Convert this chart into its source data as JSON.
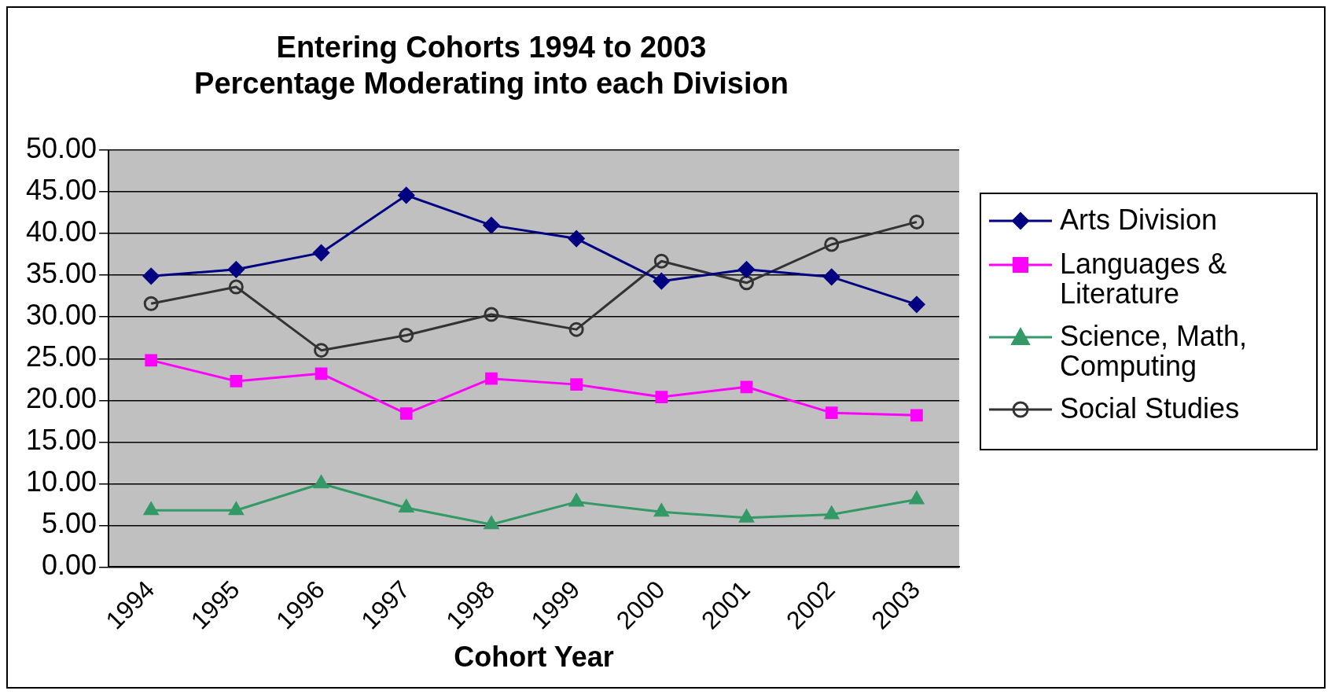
{
  "chart_data": {
    "type": "line",
    "title": [
      "Entering Cohorts 1994 to 2003",
      "Percentage Moderating into each Division"
    ],
    "xlabel": "Cohort Year",
    "categories": [
      "1994",
      "1995",
      "1996",
      "1997",
      "1998",
      "1999",
      "2000",
      "2001",
      "2002",
      "2003"
    ],
    "series": [
      {
        "name": "Arts Division",
        "color": "#000080",
        "marker": "diamond",
        "values": [
          34.9,
          35.7,
          37.7,
          44.6,
          41.0,
          39.4,
          34.3,
          35.7,
          34.8,
          31.5
        ]
      },
      {
        "name": "Languages & Literature",
        "color": "#ff00ff",
        "marker": "square",
        "values": [
          24.8,
          22.3,
          23.2,
          18.4,
          22.6,
          21.9,
          20.4,
          21.6,
          18.5,
          18.2
        ]
      },
      {
        "name": "Science, Math, Computing",
        "color": "#339966",
        "marker": "triangle",
        "values": [
          6.8,
          6.8,
          10.0,
          7.1,
          5.1,
          7.8,
          6.6,
          5.9,
          6.3,
          8.1
        ]
      },
      {
        "name": "Social Studies",
        "color": "#333333",
        "marker": "circle",
        "values": [
          31.6,
          33.6,
          26.0,
          27.8,
          30.3,
          28.5,
          36.7,
          34.1,
          38.7,
          41.4
        ]
      }
    ],
    "ylim": [
      0,
      50
    ],
    "yticks": [
      {
        "value": 0,
        "label": "0.00"
      },
      {
        "value": 5,
        "label": "5.00"
      },
      {
        "value": 10,
        "label": "10.00"
      },
      {
        "value": 15,
        "label": "15.00"
      },
      {
        "value": 20,
        "label": "20.00"
      },
      {
        "value": 25,
        "label": "25.00"
      },
      {
        "value": 30,
        "label": "30.00"
      },
      {
        "value": 35,
        "label": "35.00"
      },
      {
        "value": 40,
        "label": "40.00"
      },
      {
        "value": 45,
        "label": "45.00"
      },
      {
        "value": 50,
        "label": "50.00"
      }
    ],
    "grid": "y",
    "legend": "right"
  }
}
